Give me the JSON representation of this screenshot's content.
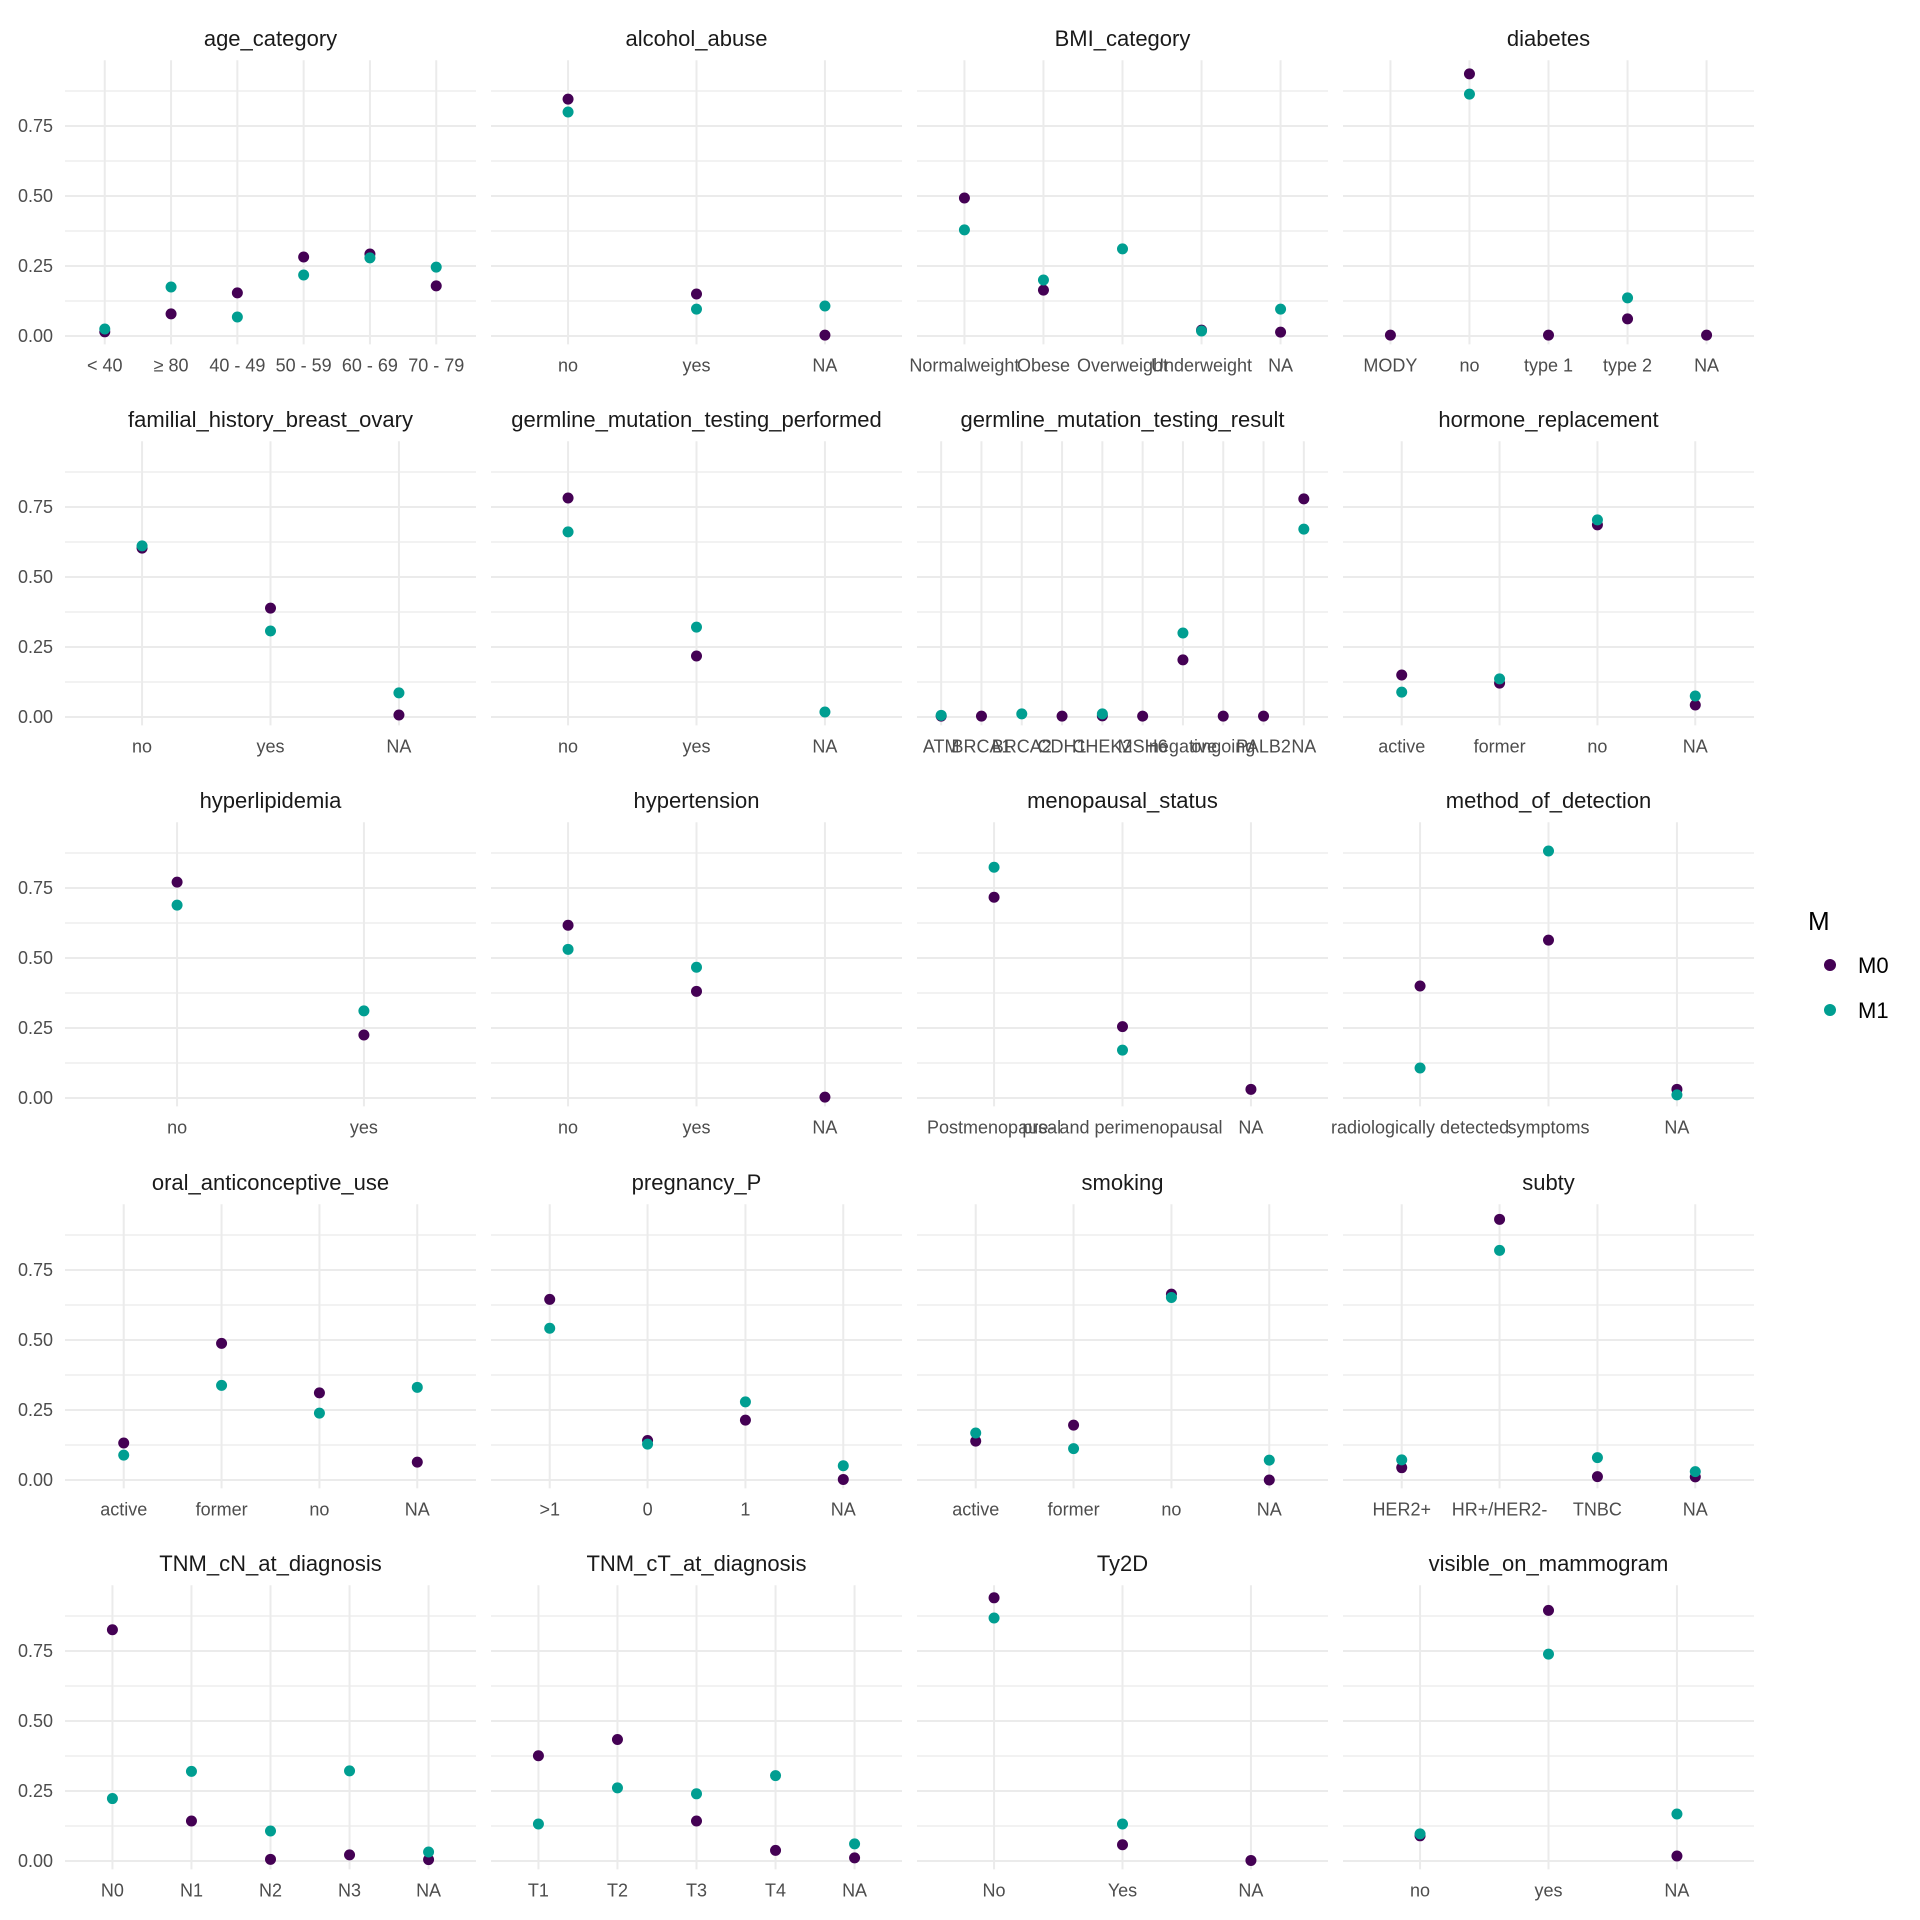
{
  "chart_data": {
    "type": "scatter",
    "layout": "facet_wrap 4 columns",
    "ylim": [
      -0.03,
      0.985
    ],
    "y_ticks": [
      0.0,
      0.25,
      0.5,
      0.75
    ],
    "y_tick_labels": [
      "0.00",
      "0.25",
      "0.50",
      "0.75"
    ],
    "grid": true,
    "legend": {
      "title": "M",
      "position": "right",
      "entries": [
        {
          "name": "M0",
          "color": "#440154"
        },
        {
          "name": "M1",
          "color": "#009E91"
        }
      ]
    },
    "panels": [
      {
        "title": "age_category",
        "categories": [
          "< 40",
          "≥ 80",
          "40 - 49",
          "50 - 59",
          "60 - 69",
          "70 - 79"
        ],
        "series": [
          {
            "name": "M0",
            "values": [
              0.015,
              0.079,
              0.154,
              0.282,
              0.293,
              0.179
            ]
          },
          {
            "name": "M1",
            "values": [
              0.025,
              0.175,
              0.068,
              0.218,
              0.279,
              0.246
            ]
          }
        ]
      },
      {
        "title": "alcohol_abuse",
        "categories": [
          "no",
          "yes",
          "NA"
        ],
        "series": [
          {
            "name": "M0",
            "values": [
              0.846,
              0.15,
              0.003
            ]
          },
          {
            "name": "M1",
            "values": [
              0.8,
              0.096,
              0.107
            ]
          }
        ]
      },
      {
        "title": "BMI_category",
        "categories": [
          "Normalweight",
          "Obese",
          "Overweight",
          "Underweight",
          "NA"
        ],
        "series": [
          {
            "name": "M0",
            "values": [
              0.493,
              0.164,
              null,
              0.021,
              0.014
            ]
          },
          {
            "name": "M1",
            "values": [
              0.379,
              0.2,
              0.311,
              0.018,
              0.096
            ]
          }
        ]
      },
      {
        "title": "diabetes",
        "categories": [
          "MODY",
          "no",
          "type 1",
          "type 2",
          "NA"
        ],
        "series": [
          {
            "name": "M0",
            "values": [
              0.003,
              0.936,
              0.003,
              0.061,
              0.003
            ]
          },
          {
            "name": "M1",
            "values": [
              null,
              0.864,
              null,
              0.136,
              null
            ]
          }
        ]
      },
      {
        "title": "familial_history_breast_ovary",
        "categories": [
          "no",
          "yes",
          "NA"
        ],
        "series": [
          {
            "name": "M0",
            "values": [
              0.603,
              0.389,
              0.007
            ]
          },
          {
            "name": "M1",
            "values": [
              0.611,
              0.307,
              0.086
            ]
          }
        ]
      },
      {
        "title": "germline_mutation_testing_performed",
        "categories": [
          "no",
          "yes",
          "NA"
        ],
        "series": [
          {
            "name": "M0",
            "values": [
              0.782,
              0.218,
              null
            ]
          },
          {
            "name": "M1",
            "values": [
              0.661,
              0.321,
              0.018
            ]
          }
        ]
      },
      {
        "title": "germline_mutation_testing_result",
        "categories": [
          "ATM",
          "BRCA1",
          "BRCA2",
          "CDH1",
          "CHEK2",
          "MSH6",
          "negative",
          "ongoing",
          "PALB2",
          "NA"
        ],
        "series": [
          {
            "name": "M0",
            "values": [
              0.003,
              0.003,
              null,
              0.003,
              0.004,
              0.003,
              0.204,
              0.003,
              0.003,
              0.779
            ]
          },
          {
            "name": "M1",
            "values": [
              0.006,
              null,
              0.011,
              null,
              0.011,
              null,
              0.3,
              null,
              null,
              0.671
            ]
          }
        ]
      },
      {
        "title": "hormone_replacement",
        "categories": [
          "active",
          "former",
          "no",
          "NA"
        ],
        "series": [
          {
            "name": "M0",
            "values": [
              0.15,
              0.121,
              0.686,
              0.043
            ]
          },
          {
            "name": "M1",
            "values": [
              0.089,
              0.136,
              0.704,
              0.075
            ]
          }
        ]
      },
      {
        "title": "hyperlipidemia",
        "categories": [
          "no",
          "yes"
        ],
        "series": [
          {
            "name": "M0",
            "values": [
              0.771,
              0.225
            ]
          },
          {
            "name": "M1",
            "values": [
              0.689,
              0.311
            ]
          }
        ]
      },
      {
        "title": "hypertension",
        "categories": [
          "no",
          "yes",
          "NA"
        ],
        "series": [
          {
            "name": "M0",
            "values": [
              0.617,
              0.381,
              0.003
            ]
          },
          {
            "name": "M1",
            "values": [
              0.531,
              0.467,
              null
            ]
          }
        ]
      },
      {
        "title": "menopausal_status",
        "categories": [
          "Postmenopausal",
          "pre- and perimenopausal",
          "NA"
        ],
        "series": [
          {
            "name": "M0",
            "values": [
              0.717,
              0.255,
              0.031
            ]
          },
          {
            "name": "M1",
            "values": [
              0.824,
              0.171,
              null
            ]
          }
        ]
      },
      {
        "title": "method_of_detection",
        "categories": [
          "radiologically detected",
          "symptoms",
          "NA"
        ],
        "series": [
          {
            "name": "M0",
            "values": [
              0.4,
              0.564,
              0.031
            ]
          },
          {
            "name": "M1",
            "values": [
              0.107,
              0.882,
              0.011
            ]
          }
        ]
      },
      {
        "title": "oral_anticonceptive_use",
        "categories": [
          "active",
          "former",
          "no",
          "NA"
        ],
        "series": [
          {
            "name": "M0",
            "values": [
              0.132,
              0.488,
              0.311,
              0.064
            ]
          },
          {
            "name": "M1",
            "values": [
              0.089,
              0.338,
              0.239,
              0.331
            ]
          }
        ]
      },
      {
        "title": "pregnancy_P",
        "categories": [
          ">1",
          "0",
          "1",
          "NA"
        ],
        "series": [
          {
            "name": "M0",
            "values": [
              0.645,
              0.141,
              0.214,
              0.002
            ]
          },
          {
            "name": "M1",
            "values": [
              0.542,
              0.128,
              0.279,
              0.051
            ]
          }
        ]
      },
      {
        "title": "smoking",
        "categories": [
          "active",
          "former",
          "no",
          "NA"
        ],
        "series": [
          {
            "name": "M0",
            "values": [
              0.139,
              0.196,
              0.664,
              0.0
            ]
          },
          {
            "name": "M1",
            "values": [
              0.168,
              0.112,
              0.652,
              0.071
            ]
          }
        ]
      },
      {
        "title": "subty",
        "categories": [
          "HER2+",
          "HR+/HER2-",
          "TNBC",
          "NA"
        ],
        "series": [
          {
            "name": "M0",
            "values": [
              0.044,
              0.931,
              0.012,
              0.011
            ]
          },
          {
            "name": "M1",
            "values": [
              0.072,
              0.82,
              0.08,
              0.03
            ]
          }
        ]
      },
      {
        "title": "TNM_cN_at_diagnosis",
        "categories": [
          "N0",
          "N1",
          "N2",
          "N3",
          "NA"
        ],
        "series": [
          {
            "name": "M0",
            "values": [
              0.826,
              0.143,
              0.006,
              0.022,
              0.005
            ]
          },
          {
            "name": "M1",
            "values": [
              0.223,
              0.32,
              0.107,
              0.322,
              0.032
            ]
          }
        ]
      },
      {
        "title": "TNM_cT_at_diagnosis",
        "categories": [
          "T1",
          "T2",
          "T3",
          "T4",
          "NA"
        ],
        "series": [
          {
            "name": "M0",
            "values": [
              0.376,
              0.434,
              0.143,
              0.038,
              0.011
            ]
          },
          {
            "name": "M1",
            "values": [
              0.132,
              0.261,
              0.24,
              0.305,
              0.061
            ]
          }
        ]
      },
      {
        "title": "Ty2D",
        "categories": [
          "No",
          "Yes",
          "NA"
        ],
        "series": [
          {
            "name": "M0",
            "values": [
              0.94,
              0.058,
              0.002
            ]
          },
          {
            "name": "M1",
            "values": [
              0.868,
              0.132,
              null
            ]
          }
        ]
      },
      {
        "title": "visible_on_mammogram",
        "categories": [
          "no",
          "yes",
          "NA"
        ],
        "series": [
          {
            "name": "M0",
            "values": [
              0.09,
              0.895,
              0.018
            ]
          },
          {
            "name": "M1",
            "values": [
              0.097,
              0.739,
              0.168
            ]
          }
        ]
      }
    ]
  }
}
